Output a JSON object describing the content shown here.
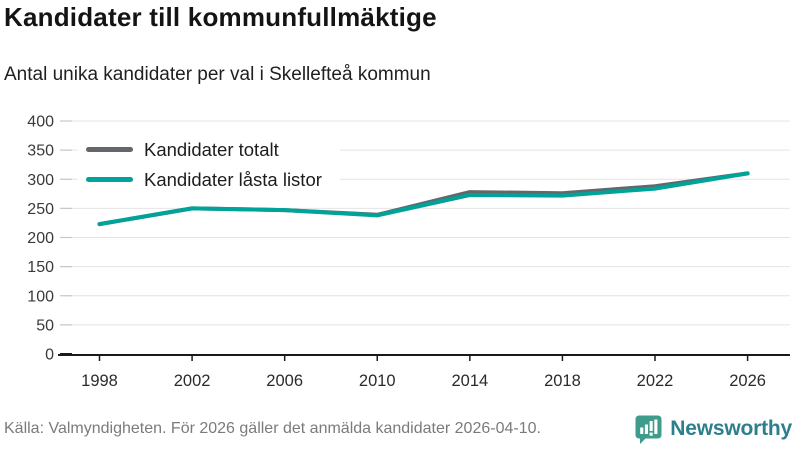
{
  "header": {
    "title": "Kandidater till kommunfullmäktige",
    "subtitle": "Antal unika kandidater per val i Skellefteå kommun"
  },
  "chart_data": {
    "type": "line",
    "categories": [
      "1998",
      "2002",
      "2006",
      "2010",
      "2014",
      "2018",
      "2022",
      "2026"
    ],
    "series": [
      {
        "name": "Kandidater totalt",
        "color": "#63666a",
        "values": [
          223,
          250,
          247,
          239,
          278,
          276,
          288,
          310
        ]
      },
      {
        "name": "Kandidater låsta listor",
        "color": "#00a39a",
        "values": [
          223,
          250,
          247,
          238,
          273,
          272,
          284,
          310
        ]
      }
    ],
    "title": "Kandidater till kommunfullmäktige",
    "subtitle": "Antal unika kandidater per val i Skellefteå kommun",
    "xlabel": "",
    "ylabel": "",
    "ylim": [
      0,
      400
    ],
    "ytick_step": 50,
    "grid": true,
    "legend_position": "top-left"
  },
  "footer": {
    "source": "Källa: Valmyndigheten. För 2026 gäller det anmälda kandidater 2026-04-10.",
    "brand": "Newsworthy",
    "brand_icon": "bar-chart-speech-bubble-icon",
    "brand_icon_color": "#3f9b8c",
    "brand_text_color": "#2e7f8d"
  }
}
